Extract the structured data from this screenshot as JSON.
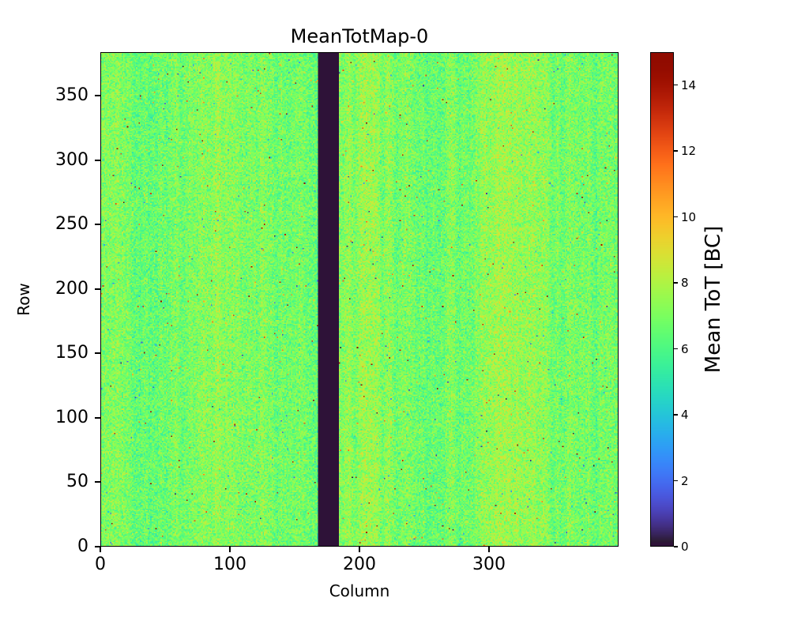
{
  "chart_data": {
    "type": "heatmap",
    "title": "MeanTotMap-0",
    "xlabel": "Column",
    "ylabel": "Row",
    "x_range": [
      0,
      400
    ],
    "y_range": [
      0,
      384
    ],
    "x_ticks": [
      0,
      100,
      200,
      300
    ],
    "y_ticks": [
      0,
      50,
      100,
      150,
      200,
      250,
      300,
      350
    ],
    "colormap": "turbo",
    "vmin": 0,
    "vmax": 15,
    "colorbar_label": "Mean ToT [BC]",
    "colorbar_ticks": [
      0,
      2,
      4,
      6,
      8,
      10,
      12,
      14
    ],
    "grid": false,
    "legend": "none",
    "description": "Pixel-detector mean time-over-threshold map: 400 columns x 384 rows of noisy values centred near 7 BC (green), teal speckles near 5-6 BC, yellow/orange patches near 8-9 BC, sparse hot pixels up to 15 BC, rare dark pixels near 0, and a fully dead vertical column band (value 0) spanning roughly columns 168-184.",
    "background": {
      "typical_min": 5.2,
      "typical_max": 8.8,
      "mean": 7.0,
      "hot_pixel_fraction": 0.0035,
      "hot_pixel_value_range": [
        9,
        15
      ],
      "cold_pixel_fraction": 0.0015,
      "cold_pixel_value_range": [
        0,
        4
      ],
      "column_streak_amplitude": 0.5
    },
    "dead_region": {
      "shape": "column-band",
      "col_start": 168,
      "col_end": 184,
      "value": 0
    },
    "seed": 42
  }
}
